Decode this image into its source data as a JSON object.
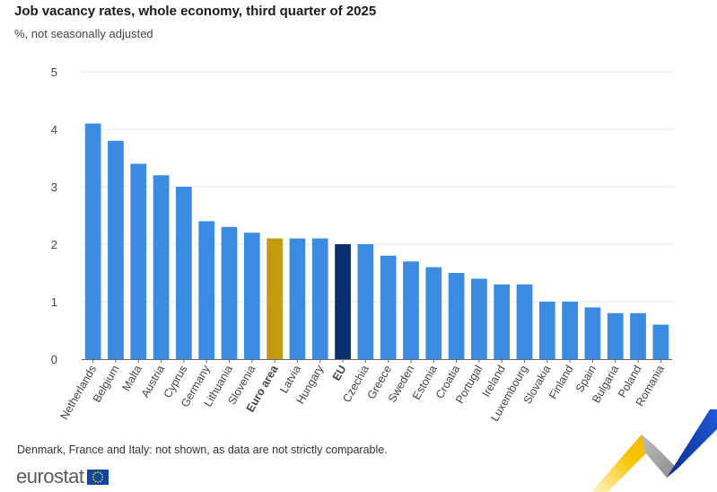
{
  "header": {
    "title": "Job vacancy rates, whole economy, third quarter of 2025",
    "subtitle": "%, not seasonally adjusted"
  },
  "footer": {
    "note": "Denmark, France and Italy: not shown, as data are not strictly comparable.",
    "logo_text": "eurostat"
  },
  "colors": {
    "bar": "#3b8be0",
    "euro_area": "#c49a0f",
    "eu": "#0a2d6e",
    "grid": "#e4e4e4",
    "axis_text": "#444444"
  },
  "chart_data": {
    "type": "bar",
    "title": "Job vacancy rates, whole economy, third quarter of 2025",
    "subtitle": "%, not seasonally adjusted",
    "xlabel": "",
    "ylabel": "",
    "ylim": [
      0,
      5
    ],
    "yticks": [
      0,
      1,
      2,
      3,
      4,
      5
    ],
    "grid": true,
    "categories": [
      "Netherlands",
      "Belgium",
      "Malta",
      "Austria",
      "Cyprus",
      "Germany",
      "Lithuania",
      "Slovenia",
      "Euro area",
      "Latvia",
      "Hungary",
      "EU",
      "Czechia",
      "Greece",
      "Sweden",
      "Estonia",
      "Croatia",
      "Portugal",
      "Ireland",
      "Luxembourg",
      "Slovakia",
      "Finland",
      "Spain",
      "Bulgaria",
      "Poland",
      "Romania"
    ],
    "values": [
      4.1,
      3.8,
      3.4,
      3.2,
      3.0,
      2.4,
      2.3,
      2.2,
      2.1,
      2.1,
      2.1,
      2.0,
      2.0,
      1.8,
      1.7,
      1.6,
      1.5,
      1.4,
      1.3,
      1.3,
      1.0,
      1.0,
      0.9,
      0.8,
      0.8,
      0.6
    ],
    "highlight": {
      "Euro area": "euro_area",
      "EU": "eu"
    }
  }
}
